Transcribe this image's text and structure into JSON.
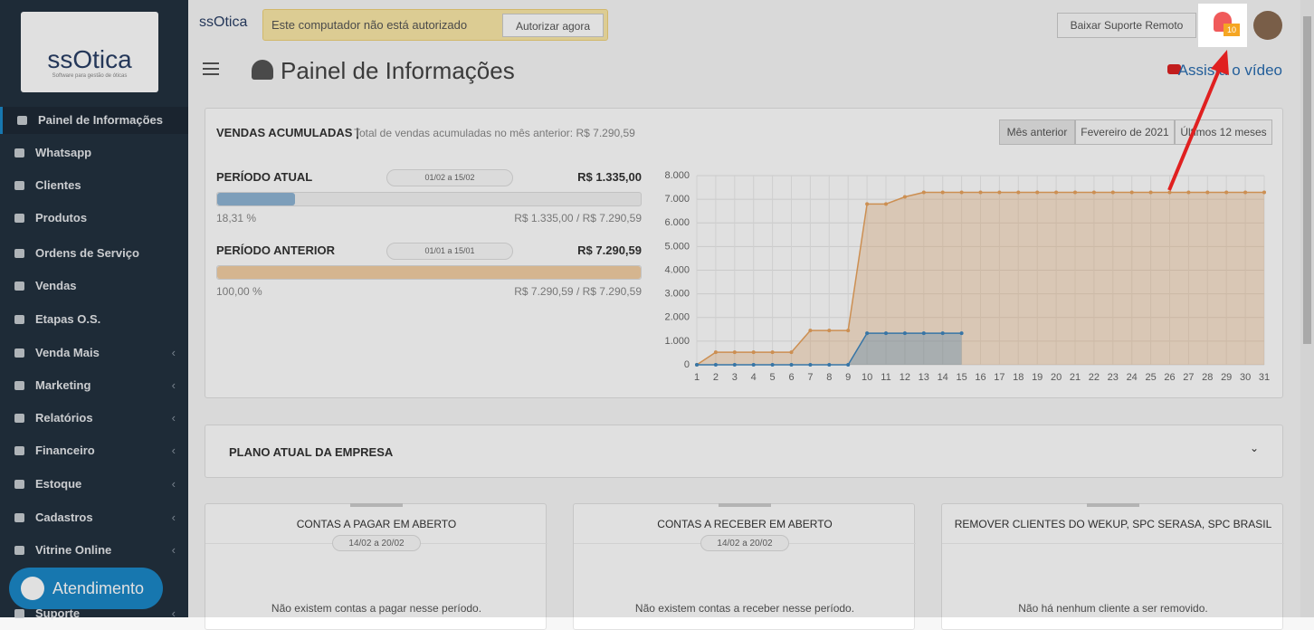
{
  "sidebar": {
    "logo": {
      "brand": "ssOtica",
      "tagline": "Software para gestão de óticas"
    },
    "menu": [
      "Painel de Informações",
      "Whatsapp",
      "Clientes",
      "Produtos",
      "Ordens de Serviço",
      "Vendas",
      "Etapas O.S.",
      "Venda Mais",
      "Marketing",
      "Relatórios",
      "Financeiro",
      "Estoque",
      "Cadastros",
      "Vitrine Online",
      "Suporte"
    ],
    "support_button": "Atendimento"
  },
  "topbar": {
    "brand": "ssOtica",
    "alert": {
      "message": "Este computador não está autorizado",
      "button": "Autorizar agora"
    },
    "remote_button": "Baixar Suporte Remoto",
    "notification_count": 10
  },
  "page": {
    "title": "Painel de Informações",
    "video_link": "Assista o vídeo"
  },
  "sales_card": {
    "title": "VENDAS ACUMULADAS",
    "subtitle": "Total de vendas acumuladas no mês anterior: R$ 7.290,59",
    "tabs": [
      "Mês anterior",
      "Fevereiro de 2021",
      "Últimos 12 meses"
    ],
    "periods": [
      {
        "label": "PERÍODO ATUAL",
        "dates": "01/02 a 15/02",
        "total": "R$ 1.335,00",
        "percent": 18.31,
        "percent_label": "18,31 %",
        "ratio": "R$ 1.335,00 / R$ 7.290,59"
      },
      {
        "label": "PERÍODO ANTERIOR",
        "dates": "01/01 a 15/01",
        "total": "R$ 7.290,59",
        "percent": 100,
        "percent_label": "100,00 %",
        "ratio": "R$ 7.290,59 / R$ 7.290,59"
      }
    ],
    "chart_data": {
      "type": "line",
      "x": [
        1,
        2,
        3,
        4,
        5,
        6,
        7,
        8,
        9,
        10,
        11,
        12,
        13,
        14,
        15,
        16,
        17,
        18,
        19,
        20,
        21,
        22,
        23,
        24,
        25,
        26,
        27,
        28,
        29,
        30,
        31
      ],
      "xlim": [
        1,
        31
      ],
      "xticks": [
        1,
        2,
        3,
        4,
        5,
        6,
        7,
        8,
        9,
        10,
        11,
        12,
        13,
        14,
        15,
        16,
        17,
        18,
        19,
        20,
        21,
        22,
        23,
        24,
        25,
        26,
        27,
        28,
        29,
        30,
        31
      ],
      "ylim": [
        0,
        8000
      ],
      "yticks": [
        0,
        {
          "value": 1000,
          "label": "1.000"
        },
        {
          "value": 2000,
          "label": "2.000"
        },
        {
          "value": 3000,
          "label": "3.000"
        },
        {
          "value": 4000,
          "label": "4.000"
        },
        {
          "value": 5000,
          "label": "5.000"
        },
        {
          "value": 6000,
          "label": "6.000"
        },
        {
          "value": 7000,
          "label": "7.000"
        },
        {
          "value": 8000,
          "label": "8.000"
        }
      ],
      "grid": true,
      "series": [
        {
          "color": "#e9a35e",
          "values": [
            0,
            530,
            530,
            530,
            530,
            530,
            1450,
            1450,
            1450,
            6800,
            6800,
            7100,
            7290.59,
            7290.59,
            7290.59,
            7290.59,
            7290.59,
            7290.59,
            7290.59,
            7290.59,
            7290.59,
            7290.59,
            7290.59,
            7290.59,
            7290.59,
            7290.59,
            7290.59,
            7290.59,
            7290.59,
            7290.59,
            7290.59
          ]
        },
        {
          "color": "#3f86bd",
          "values": [
            0,
            0,
            0,
            0,
            0,
            0,
            0,
            0,
            0,
            1335,
            1335,
            1335,
            1335,
            1335,
            1335,
            null,
            null,
            null,
            null,
            null,
            null,
            null,
            null,
            null,
            null,
            null,
            null,
            null,
            null,
            null,
            null
          ]
        }
      ]
    }
  },
  "plan_card": {
    "title": "PLANO ATUAL DA EMPRESA"
  },
  "summary_cards": [
    {
      "title": "CONTAS A PAGAR EM ABERTO",
      "dates": "14/02 a 20/02",
      "message": "Não existem contas a pagar nesse período."
    },
    {
      "title": "CONTAS A RECEBER EM ABERTO",
      "dates": "14/02 a 20/02",
      "message": "Não existem contas a receber nesse período."
    },
    {
      "title": "REMOVER CLIENTES DO WEKUP, SPC SERASA, SPC BRASIL",
      "message": "Não há nenhum cliente a ser removido."
    }
  ]
}
